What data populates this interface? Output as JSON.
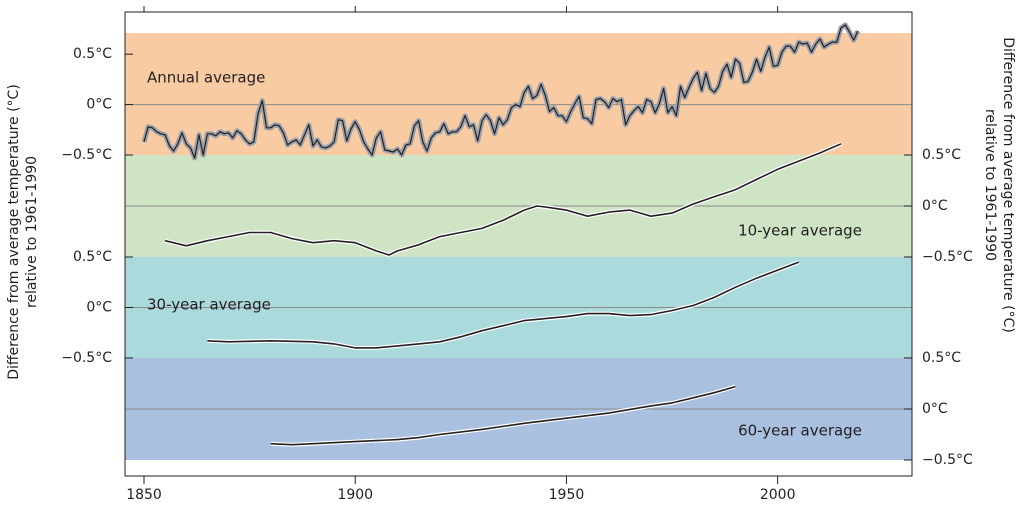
{
  "chart_data": [
    {
      "type": "line",
      "yaxis": "left",
      "band_color": "#f9cba3",
      "zero_line": true,
      "ylabel": [
        "Difference from average temperature (°C)",
        "relative to 1961-1990"
      ],
      "xlim": [
        1845.5,
        2031.8
      ],
      "ylim": [
        -0.5,
        0.71
      ],
      "yticks": [
        {
          "value": 0.5,
          "label": "0.5°C"
        },
        {
          "value": 0,
          "label": "0°C"
        },
        {
          "value": -0.5,
          "label": "−0.5°C"
        }
      ],
      "x": [
        1850,
        1851,
        1852,
        1853,
        1854,
        1855,
        1856,
        1857,
        1858,
        1859,
        1860,
        1861,
        1862,
        1863,
        1864,
        1865,
        1866,
        1867,
        1868,
        1869,
        1870,
        1871,
        1872,
        1873,
        1874,
        1875,
        1876,
        1877,
        1878,
        1879,
        1880,
        1881,
        1882,
        1883,
        1884,
        1885,
        1886,
        1887,
        1888,
        1889,
        1890,
        1891,
        1892,
        1893,
        1894,
        1895,
        1896,
        1897,
        1898,
        1899,
        1900,
        1901,
        1902,
        1903,
        1904,
        1905,
        1906,
        1907,
        1908,
        1909,
        1910,
        1911,
        1912,
        1913,
        1914,
        1915,
        1916,
        1917,
        1918,
        1919,
        1920,
        1921,
        1922,
        1923,
        1924,
        1925,
        1926,
        1927,
        1928,
        1929,
        1930,
        1931,
        1932,
        1933,
        1934,
        1935,
        1936,
        1937,
        1938,
        1939,
        1940,
        1941,
        1942,
        1943,
        1944,
        1945,
        1946,
        1947,
        1948,
        1949,
        1950,
        1951,
        1952,
        1953,
        1954,
        1955,
        1956,
        1957,
        1958,
        1959,
        1960,
        1961,
        1962,
        1963,
        1964,
        1965,
        1966,
        1967,
        1968,
        1969,
        1970,
        1971,
        1972,
        1973,
        1974,
        1975,
        1976,
        1977,
        1978,
        1979,
        1980,
        1981,
        1982,
        1983,
        1984,
        1985,
        1986,
        1987,
        1988,
        1989,
        1990,
        1991,
        1992,
        1993,
        1994,
        1995,
        1996,
        1997,
        1998,
        1999,
        2000,
        2001,
        2002,
        2003,
        2004,
        2005,
        2006,
        2007,
        2008,
        2009,
        2010,
        2011,
        2012,
        2013,
        2014,
        2015,
        2016,
        2017,
        2018,
        2019
      ],
      "series": [
        {
          "name": "Annual average",
          "color": "#231f20",
          "band": "#9aa0aa",
          "values": [
            -0.37,
            -0.22,
            -0.23,
            -0.27,
            -0.29,
            -0.3,
            -0.41,
            -0.46,
            -0.39,
            -0.28,
            -0.39,
            -0.43,
            -0.53,
            -0.3,
            -0.5,
            -0.29,
            -0.29,
            -0.31,
            -0.27,
            -0.29,
            -0.28,
            -0.33,
            -0.26,
            -0.29,
            -0.35,
            -0.39,
            -0.37,
            -0.09,
            0.04,
            -0.23,
            -0.23,
            -0.2,
            -0.21,
            -0.28,
            -0.4,
            -0.37,
            -0.35,
            -0.4,
            -0.3,
            -0.2,
            -0.41,
            -0.35,
            -0.42,
            -0.43,
            -0.41,
            -0.37,
            -0.15,
            -0.16,
            -0.36,
            -0.24,
            -0.17,
            -0.25,
            -0.37,
            -0.44,
            -0.5,
            -0.33,
            -0.27,
            -0.45,
            -0.46,
            -0.47,
            -0.44,
            -0.5,
            -0.4,
            -0.39,
            -0.21,
            -0.16,
            -0.37,
            -0.46,
            -0.33,
            -0.28,
            -0.27,
            -0.19,
            -0.29,
            -0.27,
            -0.27,
            -0.22,
            -0.11,
            -0.22,
            -0.2,
            -0.36,
            -0.16,
            -0.1,
            -0.16,
            -0.29,
            -0.13,
            -0.2,
            -0.15,
            -0.03,
            0,
            -0.02,
            0.12,
            0.18,
            0.06,
            0.09,
            0.2,
            0.09,
            -0.07,
            -0.03,
            -0.11,
            -0.11,
            -0.17,
            -0.07,
            0.01,
            0.08,
            -0.13,
            -0.14,
            -0.19,
            0.05,
            0.06,
            0.03,
            -0.03,
            0.06,
            0.03,
            0.05,
            -0.2,
            -0.11,
            -0.06,
            -0.02,
            -0.08,
            0.05,
            0.03,
            -0.08,
            0.01,
            0.16,
            -0.08,
            -0.02,
            -0.11,
            0.18,
            0.07,
            0.17,
            0.26,
            0.32,
            0.14,
            0.31,
            0.16,
            0.12,
            0.18,
            0.33,
            0.4,
            0.27,
            0.45,
            0.41,
            0.22,
            0.23,
            0.32,
            0.45,
            0.33,
            0.47,
            0.57,
            0.38,
            0.39,
            0.52,
            0.58,
            0.58,
            0.52,
            0.62,
            0.6,
            0.61,
            0.52,
            0.6,
            0.65,
            0.57,
            0.6,
            0.62,
            0.62,
            0.76,
            0.79,
            0.72,
            0.64,
            0.73
          ]
        }
      ]
    },
    {
      "type": "line",
      "yaxis": "right",
      "band_color": "#cfe4c5",
      "zero_line": true,
      "ylabel": [
        "Difference from average temperature (°C)",
        "relative to 1961-1990"
      ],
      "xlim": [
        1845.5,
        2031.8
      ],
      "ylim": [
        -0.5,
        0.5
      ],
      "yticks": [
        {
          "value": 0.5,
          "label": "0.5°C"
        },
        {
          "value": 0,
          "label": "0°C"
        },
        {
          "value": -0.5,
          "label": "−0.5°C"
        }
      ],
      "x": [
        1855,
        1860,
        1865,
        1870,
        1875,
        1880,
        1885,
        1890,
        1895,
        1900,
        1905,
        1908,
        1910,
        1915,
        1920,
        1925,
        1930,
        1935,
        1940,
        1943,
        1945,
        1950,
        1955,
        1960,
        1965,
        1970,
        1975,
        1980,
        1985,
        1990,
        1995,
        2000,
        2005,
        2010,
        2015
      ],
      "series": [
        {
          "name": "10-year average",
          "color": "#231f20",
          "values": [
            -0.34,
            -0.39,
            -0.34,
            -0.3,
            -0.26,
            -0.26,
            -0.32,
            -0.36,
            -0.34,
            -0.36,
            -0.44,
            -0.48,
            -0.44,
            -0.38,
            -0.3,
            -0.26,
            -0.22,
            -0.14,
            -0.04,
            0,
            -0.01,
            -0.04,
            -0.1,
            -0.06,
            -0.04,
            -0.1,
            -0.07,
            0.02,
            0.09,
            0.16,
            0.26,
            0.36,
            0.44,
            0.52,
            0.61
          ]
        }
      ]
    },
    {
      "type": "line",
      "yaxis": "left",
      "band_color": "#abdadd",
      "zero_line": true,
      "xlim": [
        1845.5,
        2031.8
      ],
      "ylim": [
        -0.5,
        0.5
      ],
      "yticks": [
        {
          "value": 0.5,
          "label": "0.5°C"
        },
        {
          "value": 0,
          "label": "0°C"
        },
        {
          "value": -0.5,
          "label": "−0.5°C"
        }
      ],
      "x": [
        1865,
        1870,
        1880,
        1890,
        1895,
        1900,
        1905,
        1910,
        1915,
        1920,
        1925,
        1930,
        1935,
        1940,
        1945,
        1950,
        1955,
        1960,
        1965,
        1970,
        1975,
        1980,
        1985,
        1990,
        1995,
        2000,
        2005
      ],
      "series": [
        {
          "name": "30-year average",
          "color": "#231f20",
          "values": [
            -0.33,
            -0.34,
            -0.33,
            -0.34,
            -0.36,
            -0.4,
            -0.4,
            -0.38,
            -0.36,
            -0.34,
            -0.29,
            -0.23,
            -0.18,
            -0.13,
            -0.11,
            -0.09,
            -0.06,
            -0.06,
            -0.08,
            -0.07,
            -0.03,
            0.02,
            0.1,
            0.2,
            0.29,
            0.37,
            0.45
          ]
        }
      ]
    },
    {
      "type": "line",
      "yaxis": "right",
      "band_color": "#aac0e1",
      "zero_line": true,
      "xlim": [
        1845.5,
        2031.8
      ],
      "ylim": [
        -0.5,
        0.5
      ],
      "xticks": [
        1850,
        1900,
        1950,
        2000
      ],
      "yticks": [
        {
          "value": 0.5,
          "label": "0.5°C"
        },
        {
          "value": 0,
          "label": "0°C"
        },
        {
          "value": -0.5,
          "label": "−0.5°C"
        }
      ],
      "x": [
        1880,
        1885,
        1890,
        1900,
        1910,
        1915,
        1920,
        1930,
        1940,
        1950,
        1960,
        1970,
        1975,
        1980,
        1985,
        1990
      ],
      "series": [
        {
          "name": "60-year average",
          "color": "#231f20",
          "values": [
            -0.34,
            -0.35,
            -0.34,
            -0.32,
            -0.3,
            -0.28,
            -0.25,
            -0.2,
            -0.14,
            -0.09,
            -0.04,
            0.03,
            0.06,
            0.11,
            0.16,
            0.22
          ]
        }
      ]
    }
  ]
}
